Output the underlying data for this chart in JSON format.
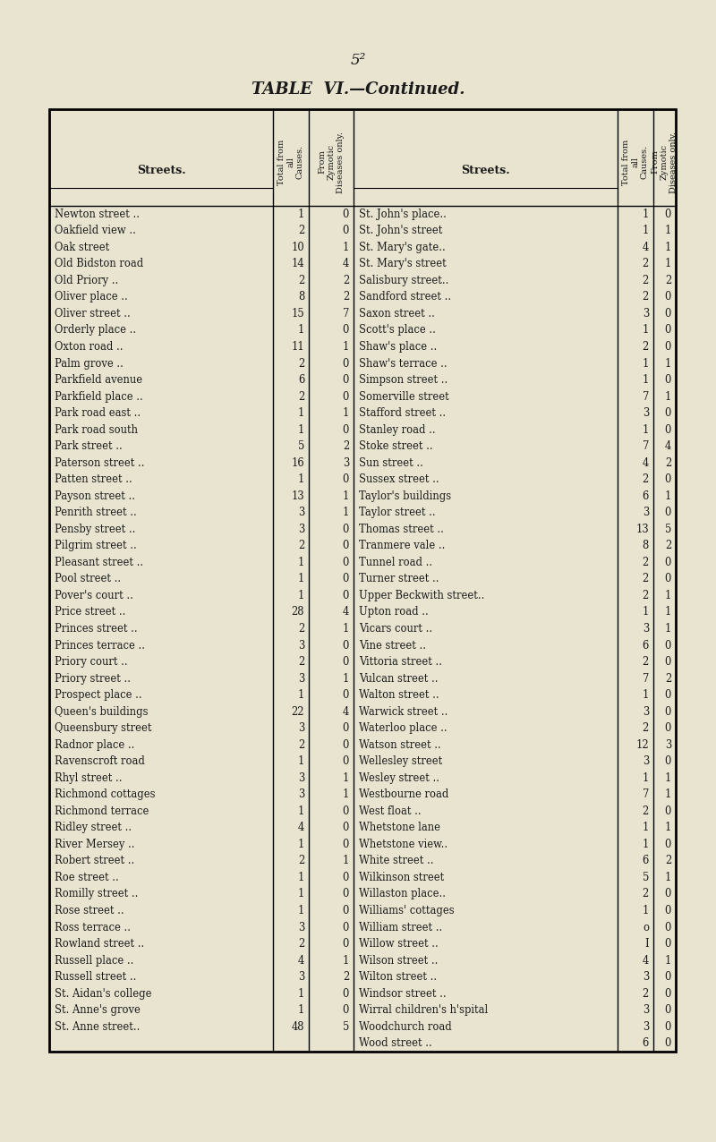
{
  "title_page_num": "5²",
  "title": "TABLE  VI.—Continued.",
  "bg_color": "#e8e4d0",
  "text_color": "#1a1a1a",
  "left_data": [
    [
      "Newton street ..",
      "1",
      "0"
    ],
    [
      "Oakfield view ..",
      "2",
      "0"
    ],
    [
      "Oak street",
      "10",
      "1"
    ],
    [
      "Old Bidston road",
      "14",
      "4"
    ],
    [
      "Old Priory ..",
      "2",
      "2"
    ],
    [
      "Oliver place ..",
      "8",
      "2"
    ],
    [
      "Oliver street ..",
      "15",
      "7"
    ],
    [
      "Orderly place ..",
      "1",
      "0"
    ],
    [
      "Oxton road ..",
      "11",
      "1"
    ],
    [
      "Palm grove ..",
      "2",
      "0"
    ],
    [
      "Parkfield avenue",
      "6",
      "0"
    ],
    [
      "Parkfield place ..",
      "2",
      "0"
    ],
    [
      "Park road east ..",
      "1",
      "1"
    ],
    [
      "Park road south",
      "1",
      "0"
    ],
    [
      "Park street ..",
      "5",
      "2"
    ],
    [
      "Paterson street ..",
      "16",
      "3"
    ],
    [
      "Patten street ..",
      "1",
      "0"
    ],
    [
      "Payson street ..",
      "13",
      "1"
    ],
    [
      "Penrith street ..",
      "3",
      "1"
    ],
    [
      "Pensby street ..",
      "3",
      "0"
    ],
    [
      "Pilgrim street ..",
      "2",
      "0"
    ],
    [
      "Pleasant street ..",
      "1",
      "0"
    ],
    [
      "Pool street ..",
      "1",
      "0"
    ],
    [
      "Pover's court ..",
      "1",
      "0"
    ],
    [
      "Price street ..",
      "28",
      "4"
    ],
    [
      "Princes street ..",
      "2",
      "1"
    ],
    [
      "Princes terrace ..",
      "3",
      "0"
    ],
    [
      "Priory court ..",
      "2",
      "0"
    ],
    [
      "Priory street ..",
      "3",
      "1"
    ],
    [
      "Prospect place ..",
      "1",
      "0"
    ],
    [
      "Queen's buildings",
      "22",
      "4"
    ],
    [
      "Queensbury street",
      "3",
      "0"
    ],
    [
      "Radnor place ..",
      "2",
      "0"
    ],
    [
      "Ravenscroft road",
      "1",
      "0"
    ],
    [
      "Rhyl street ..",
      "3",
      "1"
    ],
    [
      "Richmond cottages",
      "3",
      "1"
    ],
    [
      "Richmond terrace",
      "1",
      "0"
    ],
    [
      "Ridley street ..",
      "4",
      "0"
    ],
    [
      "River Mersey ..",
      "1",
      "0"
    ],
    [
      "Robert street ..",
      "2",
      "1"
    ],
    [
      "Roe street ..",
      "1",
      "0"
    ],
    [
      "Romilly street ..",
      "1",
      "0"
    ],
    [
      "Rose street ..",
      "1",
      "0"
    ],
    [
      "Ross terrace ..",
      "3",
      "0"
    ],
    [
      "Rowland street ..",
      "2",
      "0"
    ],
    [
      "Russell place ..",
      "4",
      "1"
    ],
    [
      "Russell street ..",
      "3",
      "2"
    ],
    [
      "St. Aidan's college",
      "1",
      "0"
    ],
    [
      "St. Anne's grove",
      "1",
      "0"
    ],
    [
      "St. Anne street..",
      "48",
      "5"
    ]
  ],
  "right_data": [
    [
      "St. John's place..",
      "1",
      "0"
    ],
    [
      "St. John's street",
      "1",
      "1"
    ],
    [
      "St. Mary's gate..",
      "4",
      "1"
    ],
    [
      "St. Mary's street",
      "2",
      "1"
    ],
    [
      "Salisbury street..",
      "2",
      "2"
    ],
    [
      "Sandford street ..",
      "2",
      "0"
    ],
    [
      "Saxon street ..",
      "3",
      "0"
    ],
    [
      "Scott's place ..",
      "1",
      "0"
    ],
    [
      "Shaw's place ..",
      "2",
      "0"
    ],
    [
      "Shaw's terrace ..",
      "1",
      "1"
    ],
    [
      "Simpson street ..",
      "1",
      "0"
    ],
    [
      "Somerville street",
      "7",
      "1"
    ],
    [
      "Stafford street ..",
      "3",
      "0"
    ],
    [
      "Stanley road ..",
      "1",
      "0"
    ],
    [
      "Stoke street ..",
      "7",
      "4"
    ],
    [
      "Sun street ..",
      "4",
      "2"
    ],
    [
      "Sussex street ..",
      "2",
      "0"
    ],
    [
      "Taylor's buildings",
      "6",
      "1"
    ],
    [
      "Taylor street ..",
      "3",
      "0"
    ],
    [
      "Thomas street ..",
      "13",
      "5"
    ],
    [
      "Tranmere vale ..",
      "8",
      "2"
    ],
    [
      "Tunnel road ..",
      "2",
      "0"
    ],
    [
      "Turner street ..",
      "2",
      "0"
    ],
    [
      "Upper Beckwith street..",
      "2",
      "1"
    ],
    [
      "Upton road ..",
      "1",
      "1"
    ],
    [
      "Vicars court ..",
      "3",
      "1"
    ],
    [
      "Vine street ..",
      "6",
      "0"
    ],
    [
      "Vittoria street ..",
      "2",
      "0"
    ],
    [
      "Vulcan street ..",
      "7",
      "2"
    ],
    [
      "Walton street ..",
      "1",
      "0"
    ],
    [
      "Warwick street ..",
      "3",
      "0"
    ],
    [
      "Waterloo place ..",
      "2",
      "0"
    ],
    [
      "Watson street ..",
      "12",
      "3"
    ],
    [
      "Wellesley street",
      "3",
      "0"
    ],
    [
      "Wesley street ..",
      "1",
      "1"
    ],
    [
      "Westbourne road",
      "7",
      "1"
    ],
    [
      "West float ..",
      "2",
      "0"
    ],
    [
      "Whetstone lane",
      "1",
      "1"
    ],
    [
      "Whetstone view..",
      "1",
      "0"
    ],
    [
      "White street ..",
      "6",
      "2"
    ],
    [
      "Wilkinson street",
      "5",
      "1"
    ],
    [
      "Willaston place..",
      "2",
      "0"
    ],
    [
      "Williams' cottages",
      "1",
      "0"
    ],
    [
      "William street ..",
      "o",
      "0"
    ],
    [
      "Willow street ..",
      "I",
      "0"
    ],
    [
      "Wilson street ..",
      "4",
      "1"
    ],
    [
      "Wilton street ..",
      "3",
      "0"
    ],
    [
      "Windsor street ..",
      "2",
      "0"
    ],
    [
      "Wirral children's h'spital",
      "3",
      "0"
    ],
    [
      "Woodchurch road",
      "3",
      "0"
    ],
    [
      "Wood street ..",
      "6",
      "0"
    ]
  ]
}
